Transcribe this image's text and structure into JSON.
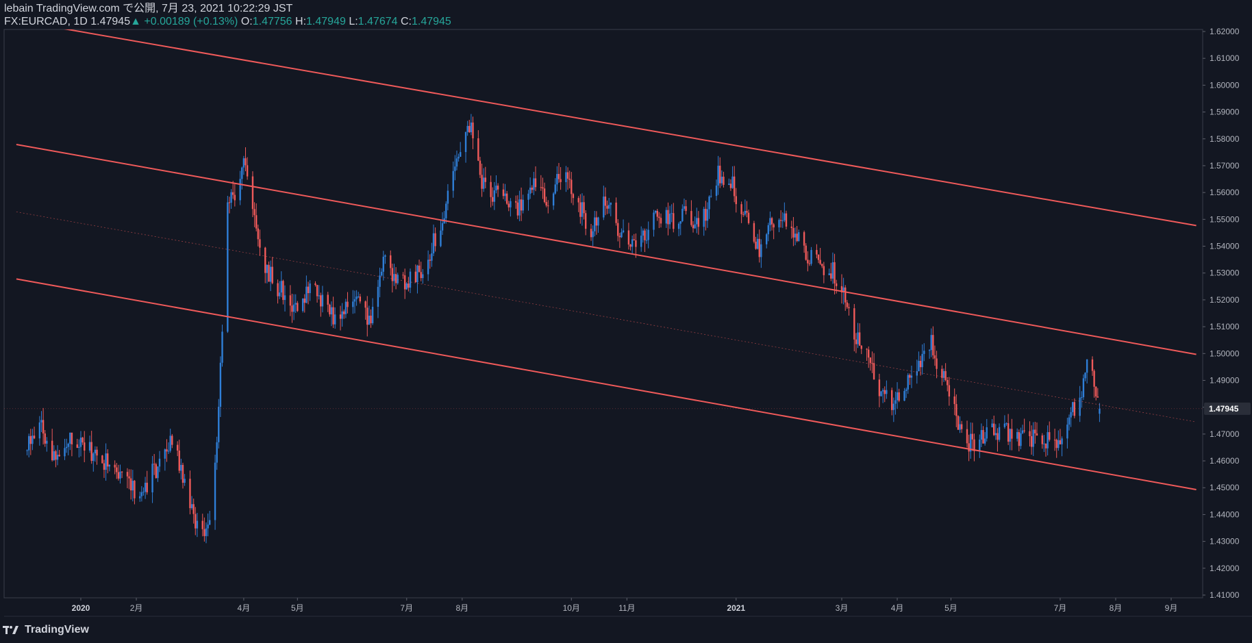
{
  "header": {
    "author_line": "lebain TradingView.com で公開, 7月 23, 2021 10:22:29 JST",
    "symbol": "FX:EURCAD, 1D",
    "last_price": "1.47945",
    "change_arrow": "▲",
    "change": "+0.00189 (+0.13%)",
    "open_label": "O:",
    "open_value": "1.47756",
    "high_label": "H:",
    "high_value": "1.47949",
    "low_label": "L:",
    "low_value": "1.47674",
    "close_label": "C:",
    "close_value": "1.47945"
  },
  "footer": {
    "brand": "TradingView"
  },
  "colors": {
    "background": "#131722",
    "up_candle": "#2f7fd8",
    "down_candle": "#f05a5a",
    "channel": "#f05a5a",
    "price_tag_bg": "#2a2e39",
    "up_text": "#26a69a"
  },
  "chart_data": {
    "type": "candlestick",
    "timeframe": "1D",
    "y_range": [
      1.41,
      1.62
    ],
    "y_ticks": [
      "1.41000",
      "1.42000",
      "1.43000",
      "1.44000",
      "1.45000",
      "1.46000",
      "1.47000",
      "1.48000",
      "1.49000",
      "1.50000",
      "1.51000",
      "1.52000",
      "1.53000",
      "1.54000",
      "1.55000",
      "1.56000",
      "1.57000",
      "1.58000",
      "1.59000",
      "1.60000",
      "1.61000",
      "1.62000"
    ],
    "x_labels": [
      {
        "label": "2020",
        "date": "2020-01-01",
        "year": true
      },
      {
        "label": "2月",
        "date": "2020-02-01"
      },
      {
        "label": "4月",
        "date": "2020-04-01"
      },
      {
        "label": "5月",
        "date": "2020-05-01"
      },
      {
        "label": "7月",
        "date": "2020-07-01"
      },
      {
        "label": "8月",
        "date": "2020-08-01"
      },
      {
        "label": "10月",
        "date": "2020-10-01"
      },
      {
        "label": "11月",
        "date": "2020-11-01"
      },
      {
        "label": "2021",
        "date": "2021-01-01",
        "year": true
      },
      {
        "label": "3月",
        "date": "2021-03-01"
      },
      {
        "label": "4月",
        "date": "2021-04-01"
      },
      {
        "label": "5月",
        "date": "2021-05-01"
      },
      {
        "label": "7月",
        "date": "2021-07-01"
      },
      {
        "label": "8月",
        "date": "2021-08-01"
      },
      {
        "label": "9月",
        "date": "2021-09-01"
      }
    ],
    "current_price": 1.47945,
    "current_price_label": "1.47945",
    "anchors": [
      [
        "2019-12-01",
        1.466
      ],
      [
        "2019-12-10",
        1.472
      ],
      [
        "2019-12-18",
        1.461
      ],
      [
        "2019-12-27",
        1.47
      ],
      [
        "2020-01-10",
        1.462
      ],
      [
        "2020-01-20",
        1.457
      ],
      [
        "2020-01-31",
        1.449
      ],
      [
        "2020-02-07",
        1.452
      ],
      [
        "2020-02-14",
        1.459
      ],
      [
        "2020-02-21",
        1.468
      ],
      [
        "2020-02-28",
        1.452
      ],
      [
        "2020-03-05",
        1.437
      ],
      [
        "2020-03-10",
        1.429
      ],
      [
        "2020-03-13",
        1.441
      ],
      [
        "2020-03-17",
        1.47
      ],
      [
        "2020-03-20",
        1.512
      ],
      [
        "2020-03-23",
        1.554
      ],
      [
        "2020-03-27",
        1.56
      ],
      [
        "2020-04-01",
        1.572
      ],
      [
        "2020-04-06",
        1.552
      ],
      [
        "2020-04-12",
        1.534
      ],
      [
        "2020-04-20",
        1.525
      ],
      [
        "2020-04-30",
        1.518
      ],
      [
        "2020-05-10",
        1.526
      ],
      [
        "2020-05-20",
        1.514
      ],
      [
        "2020-06-01",
        1.52
      ],
      [
        "2020-06-10",
        1.512
      ],
      [
        "2020-06-18",
        1.536
      ],
      [
        "2020-06-25",
        1.526
      ],
      [
        "2020-07-05",
        1.527
      ],
      [
        "2020-07-14",
        1.538
      ],
      [
        "2020-07-20",
        1.548
      ],
      [
        "2020-07-25",
        1.56
      ],
      [
        "2020-07-31",
        1.576
      ],
      [
        "2020-08-06",
        1.584
      ],
      [
        "2020-08-12",
        1.562
      ],
      [
        "2020-08-22",
        1.559
      ],
      [
        "2020-09-01",
        1.552
      ],
      [
        "2020-09-10",
        1.566
      ],
      [
        "2020-09-18",
        1.558
      ],
      [
        "2020-09-26",
        1.568
      ],
      [
        "2020-10-02",
        1.561
      ],
      [
        "2020-10-12",
        1.545
      ],
      [
        "2020-10-20",
        1.559
      ],
      [
        "2020-10-28",
        1.545
      ],
      [
        "2020-11-02",
        1.541
      ],
      [
        "2020-11-09",
        1.542
      ],
      [
        "2020-11-18",
        1.552
      ],
      [
        "2020-11-26",
        1.549
      ],
      [
        "2020-12-05",
        1.552
      ],
      [
        "2020-12-12",
        1.546
      ],
      [
        "2020-12-20",
        1.566
      ],
      [
        "2020-12-28",
        1.566
      ],
      [
        "2021-01-05",
        1.553
      ],
      [
        "2021-01-14",
        1.539
      ],
      [
        "2021-01-24",
        1.552
      ],
      [
        "2021-02-03",
        1.544
      ],
      [
        "2021-02-10",
        1.537
      ],
      [
        "2021-02-17",
        1.534
      ],
      [
        "2021-02-25",
        1.53
      ],
      [
        "2021-03-02",
        1.525
      ],
      [
        "2021-03-08",
        1.508
      ],
      [
        "2021-03-15",
        1.498
      ],
      [
        "2021-03-22",
        1.488
      ],
      [
        "2021-03-29",
        1.48
      ],
      [
        "2021-04-05",
        1.486
      ],
      [
        "2021-04-12",
        1.494
      ],
      [
        "2021-04-19",
        1.505
      ],
      [
        "2021-04-26",
        1.493
      ],
      [
        "2021-05-03",
        1.48
      ],
      [
        "2021-05-08",
        1.468
      ],
      [
        "2021-05-14",
        1.467
      ],
      [
        "2021-05-24",
        1.47
      ],
      [
        "2021-06-02",
        1.471
      ],
      [
        "2021-06-12",
        1.468
      ],
      [
        "2021-06-22",
        1.468
      ],
      [
        "2021-06-30",
        1.465
      ],
      [
        "2021-07-05",
        1.474
      ],
      [
        "2021-07-12",
        1.484
      ],
      [
        "2021-07-16",
        1.497
      ],
      [
        "2021-07-19",
        1.49
      ],
      [
        "2021-07-23",
        1.47945
      ]
    ],
    "channel_lines": [
      {
        "name": "upper-channel",
        "p1": [
          "2019-12-21",
          1.6212
        ],
        "p2": [
          "2021-09-15",
          1.5477
        ]
      },
      {
        "name": "middle-channel",
        "p1": [
          "2019-11-26",
          1.5779
        ],
        "p2": [
          "2021-09-15",
          1.4997
        ]
      },
      {
        "name": "lower-channel",
        "p1": [
          "2019-11-26",
          1.5278
        ],
        "p2": [
          "2021-09-15",
          1.4493
        ]
      }
    ],
    "midline": {
      "name": "channel-midline",
      "p1": [
        "2019-11-26",
        1.5528
      ],
      "p2": [
        "2021-09-15",
        1.4745
      ]
    }
  }
}
